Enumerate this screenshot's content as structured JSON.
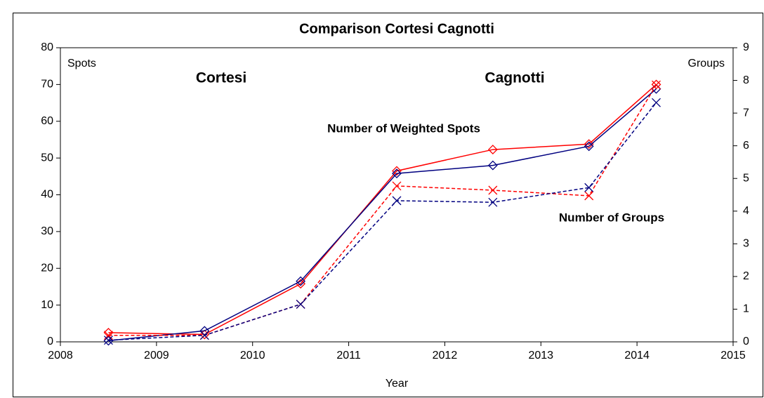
{
  "chart_data": {
    "type": "line",
    "title": "Comparison Cortesi Cagnotti",
    "x_label": "Year",
    "y_label": "Spots",
    "y2_label": "Groups",
    "annotations": [
      {
        "text": "Cortesi",
        "color": "#ff0000"
      },
      {
        "text": "Cagnotti",
        "color": "#000080"
      },
      {
        "text": "Number of Weighted Spots",
        "color": "#000000"
      },
      {
        "text": "Number of Groups",
        "color": "#000000"
      }
    ],
    "x": [
      2008.5,
      2009.5,
      2010.5,
      2011.5,
      2012.5,
      2013.5,
      2014.2
    ],
    "series": [
      {
        "color": "#ff0000",
        "marker": "diamond",
        "dashed": false,
        "axis": "y",
        "values": [
          2.5,
          2.0,
          15.8,
          46.5,
          52.3,
          53.8,
          70.0
        ]
      },
      {
        "color": "#000080",
        "marker": "diamond",
        "dashed": false,
        "axis": "y",
        "values": [
          0.3,
          3.0,
          16.5,
          45.8,
          48.0,
          53.2,
          68.8
        ]
      },
      {
        "color": "#ff0000",
        "marker": "cross",
        "dashed": true,
        "axis": "y2",
        "values": [
          0.2,
          0.2,
          1.15,
          4.77,
          4.64,
          4.47,
          7.86
        ]
      },
      {
        "color": "#000080",
        "marker": "cross",
        "dashed": true,
        "axis": "y2",
        "values": [
          0.05,
          0.2,
          1.15,
          4.32,
          4.27,
          4.72,
          7.32
        ]
      }
    ],
    "xlim": [
      2008,
      2015
    ],
    "xticks": [
      2008,
      2009,
      2010,
      2011,
      2012,
      2013,
      2014,
      2015
    ],
    "ylim": [
      0,
      80
    ],
    "yticks": [
      0,
      10,
      20,
      30,
      40,
      50,
      60,
      70,
      80
    ],
    "y2lim": [
      0,
      9
    ],
    "y2ticks": [
      0,
      1,
      2,
      3,
      4,
      5,
      6,
      7,
      8,
      9
    ]
  }
}
